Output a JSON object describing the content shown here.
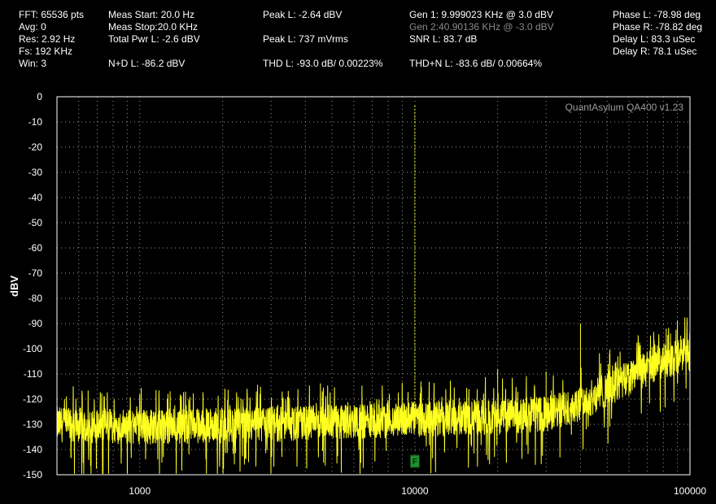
{
  "stats": {
    "col1": [
      "FFT: 65536 pts",
      "Avg: 0",
      "Res: 2.92 Hz",
      "Fs: 192 KHz",
      "Win: 3"
    ],
    "col2": [
      "Meas Start: 20.0 Hz",
      "Meas Stop:20.0 KHz",
      "Total Pwr L: -2.6 dBV",
      "N+D L: -86.2 dBV"
    ],
    "col3": [
      "Peak L: -2.64 dBV",
      "Peak L: 737 mVrms",
      "THD L: -93.0 dB/ 0.00223%"
    ],
    "col4": [
      "Gen 1: 9.999023 KHz @ 3.0  dBV",
      "Gen 2:40.90136 KHz @ -3.0  dBV",
      "SNR L: 83.7 dB",
      "THD+N L: -83.6 dB/ 0.00664%"
    ],
    "col5": [
      "Phase L: -78.98 deg",
      "Phase R: -78.82 deg",
      "Delay L: 83.3 uSec",
      "Delay R: 78.1 uSec"
    ]
  },
  "watermark": "QuantAsylum QA400 v1.23",
  "marker_label": "F",
  "colors": {
    "trace": "#ffff20",
    "grid": "#9a9a9a",
    "background": "#000000",
    "marker": "#1f8f2f"
  },
  "chart_data": {
    "type": "line",
    "title": "",
    "xlabel": "",
    "ylabel": "dBV",
    "x_scale": "log",
    "xlim": [
      500,
      100000
    ],
    "ylim": [
      -150,
      0
    ],
    "x_tick_labels": [
      "1000",
      "10000",
      "100000"
    ],
    "y_tick_labels": [
      "0",
      "-10",
      "-20",
      "-30",
      "-40",
      "-50",
      "-60",
      "-70",
      "-80",
      "-90",
      "-100",
      "-110",
      "-120",
      "-130",
      "-140",
      "-150"
    ],
    "grid": true,
    "series": [
      {
        "name": "",
        "noise_floor": [
          [
            500,
            -130
          ],
          [
            1000,
            -131
          ],
          [
            3000,
            -130
          ],
          [
            10000,
            -128
          ],
          [
            20000,
            -127
          ],
          [
            30000,
            -126
          ],
          [
            40000,
            -122
          ],
          [
            50000,
            -116
          ],
          [
            60000,
            -112
          ],
          [
            70000,
            -108
          ],
          [
            80000,
            -105
          ],
          [
            100000,
            -102
          ]
        ],
        "peaks": [
          [
            10000,
            -3
          ],
          [
            20000,
            -108
          ],
          [
            30000,
            -109
          ],
          [
            40000,
            -90
          ],
          [
            51000,
            -102
          ],
          [
            61000,
            -105
          ],
          [
            82000,
            -92
          ],
          [
            85000,
            -94
          ],
          [
            90000,
            -89
          ]
        ]
      }
    ],
    "annotations": [
      {
        "x": 10000,
        "label": "F"
      }
    ]
  }
}
